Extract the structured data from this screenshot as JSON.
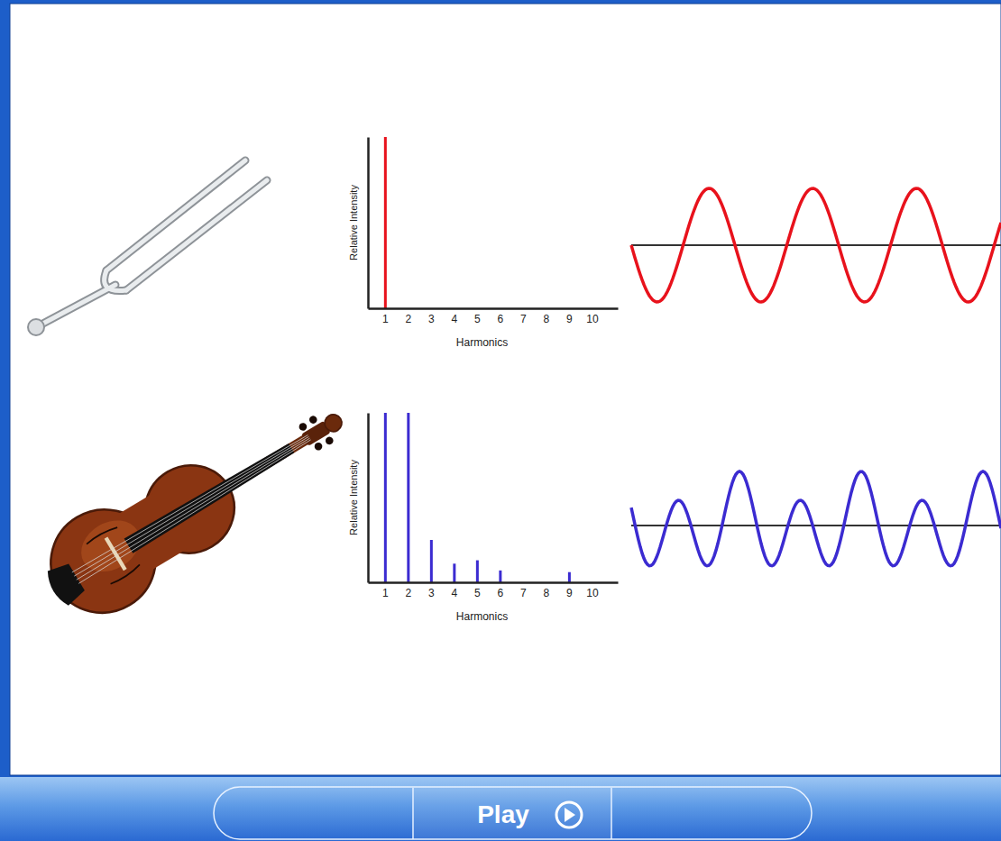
{
  "chart_data": [
    {
      "type": "bar",
      "y_label": "Relative Intensity",
      "x_label": "Harmonics",
      "categories": [
        "1",
        "2",
        "3",
        "4",
        "5",
        "6",
        "7",
        "8",
        "9",
        "10"
      ],
      "values": [
        100,
        0,
        0,
        0,
        0,
        0,
        0,
        0,
        0,
        0
      ],
      "color": "#e8121c",
      "ylim": [
        0,
        100
      ],
      "tick_labels": "x"
    },
    {
      "type": "bar",
      "y_label": "Relative Intensity",
      "x_label": "Harmonics",
      "categories": [
        "1",
        "2",
        "3",
        "4",
        "5",
        "6",
        "7",
        "8",
        "9",
        "10"
      ],
      "values": [
        100,
        100,
        25,
        11,
        13,
        7,
        0,
        0,
        6,
        0
      ],
      "color": "#3b2bd1",
      "ylim": [
        0,
        100
      ],
      "tick_labels": "x"
    }
  ],
  "controls": {
    "play": "Play"
  }
}
